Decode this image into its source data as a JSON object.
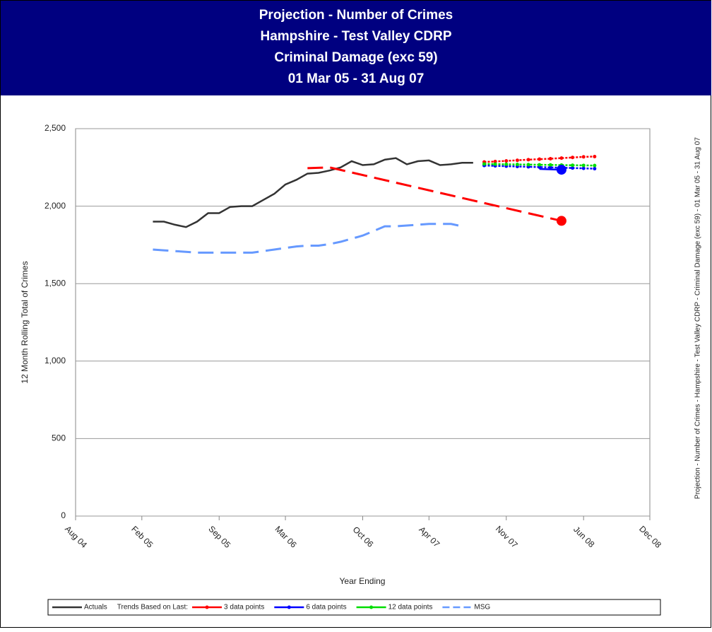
{
  "chart_data": {
    "type": "line",
    "title": [
      "Projection - Number of Crimes",
      "Hampshire - Test Valley CDRP",
      "Criminal Damage (exc 59)",
      "01 Mar 05 - 31 Aug 07"
    ],
    "x_label": "Year Ending",
    "y_label": "12 Month Rolling Total of Crimes",
    "side_note": "Projection - Number of Crimes - Hampshire - Test Valley CDRP - Criminal Damage (exc 59) - 01 Mar 05 - 31 Aug 07",
    "legend_heading": "Trends Based on Last:",
    "ylim": [
      0,
      2500
    ],
    "yticks": [
      0,
      500,
      {
        "value": 1000,
        "label": "1,000"
      },
      {
        "value": 1500,
        "label": "1,500"
      },
      {
        "value": 2000,
        "label": "2,000"
      },
      {
        "value": 2500,
        "label": "2,500"
      }
    ],
    "xlim": [
      "2004-08",
      "2008-12"
    ],
    "xticks": [
      {
        "value": "2004-08",
        "label": "Aug 04"
      },
      {
        "value": "2005-02",
        "label": "Feb 05"
      },
      {
        "value": "2005-09",
        "label": "Sep 05"
      },
      {
        "value": "2006-03",
        "label": "Mar 06"
      },
      {
        "value": "2006-10",
        "label": "Oct 06"
      },
      {
        "value": "2007-04",
        "label": "Apr 07"
      },
      {
        "value": "2007-11",
        "label": "Nov 07"
      },
      {
        "value": "2008-06",
        "label": "Jun 08"
      },
      {
        "value": "2008-12",
        "label": "Dec 08"
      }
    ],
    "grid": true,
    "series": [
      {
        "name": "Actuals",
        "color": "#333333",
        "style": "solid",
        "x": [
          "2005-03",
          "2005-04",
          "2005-05",
          "2005-06",
          "2005-07",
          "2005-08",
          "2005-09",
          "2005-10",
          "2005-11",
          "2005-12",
          "2006-01",
          "2006-02",
          "2006-03",
          "2006-04",
          "2006-05",
          "2006-06",
          "2006-07",
          "2006-08",
          "2006-09",
          "2006-10",
          "2006-11",
          "2006-12",
          "2007-01",
          "2007-02",
          "2007-03",
          "2007-04",
          "2007-05",
          "2007-06",
          "2007-07",
          "2007-08"
        ],
        "values": [
          1900,
          1900,
          1880,
          1865,
          1900,
          1955,
          1955,
          1995,
          2000,
          2000,
          2040,
          2080,
          2140,
          2170,
          2210,
          2215,
          2230,
          2250,
          2290,
          2265,
          2270,
          2300,
          2310,
          2270,
          2290,
          2295,
          2265,
          2270,
          2280,
          2280
        ]
      },
      {
        "name": "3 data points",
        "color": "#ff0000",
        "style": "dotted",
        "marker": "dot",
        "x": [
          "2007-09",
          "2007-10",
          "2007-11",
          "2007-12",
          "2008-01",
          "2008-02",
          "2008-03",
          "2008-04",
          "2008-05",
          "2008-06",
          "2008-07"
        ],
        "values": [
          2285,
          2288,
          2292,
          2296,
          2300,
          2303,
          2306,
          2310,
          2314,
          2318,
          2320
        ]
      },
      {
        "name": "6 data points",
        "color": "#0000ff",
        "style": "dotted",
        "marker": "dot",
        "x": [
          "2007-09",
          "2007-10",
          "2007-11",
          "2007-12",
          "2008-01",
          "2008-02",
          "2008-03",
          "2008-04",
          "2008-05",
          "2008-06",
          "2008-07"
        ],
        "values": [
          2262,
          2260,
          2258,
          2256,
          2254,
          2252,
          2250,
          2248,
          2246,
          2244,
          2242
        ]
      },
      {
        "name": "12 data points",
        "color": "#00dd00",
        "style": "dotted",
        "marker": "dot",
        "x": [
          "2007-09",
          "2007-10",
          "2007-11",
          "2007-12",
          "2008-01",
          "2008-02",
          "2008-03",
          "2008-04",
          "2008-05",
          "2008-06",
          "2008-07"
        ],
        "values": [
          2272,
          2271,
          2270,
          2269,
          2268,
          2267,
          2266,
          2265,
          2264,
          2263,
          2262
        ]
      },
      {
        "name": "MSG",
        "color": "#6699ff",
        "style": "dashed",
        "x": [
          "2005-03",
          "2005-04",
          "2005-05",
          "2005-06",
          "2005-07",
          "2005-08",
          "2005-09",
          "2005-10",
          "2005-11",
          "2005-12",
          "2006-01",
          "2006-02",
          "2006-03",
          "2006-04",
          "2006-05",
          "2006-06",
          "2006-07",
          "2006-08",
          "2006-09",
          "2006-10",
          "2006-11",
          "2006-12",
          "2007-01",
          "2007-02",
          "2007-03",
          "2007-04",
          "2007-05",
          "2007-06",
          "2007-07"
        ],
        "values": [
          1720,
          1715,
          1710,
          1705,
          1700,
          1700,
          1700,
          1700,
          1700,
          1700,
          1710,
          1720,
          1730,
          1740,
          1745,
          1745,
          1755,
          1770,
          1790,
          1810,
          1840,
          1870,
          1870,
          1875,
          1880,
          1885,
          1885,
          1885,
          1870
        ]
      },
      {
        "color": "#ff0000",
        "style": "dashed",
        "end_marker": true,
        "x": [
          "2006-05",
          "2006-07",
          "2008-04"
        ],
        "values": [
          2245,
          2250,
          1905
        ]
      },
      {
        "color": "#0000ff",
        "style": "solid",
        "end_marker": true,
        "x": [
          "2008-02",
          "2008-04"
        ],
        "values": [
          2240,
          2235
        ]
      }
    ]
  }
}
